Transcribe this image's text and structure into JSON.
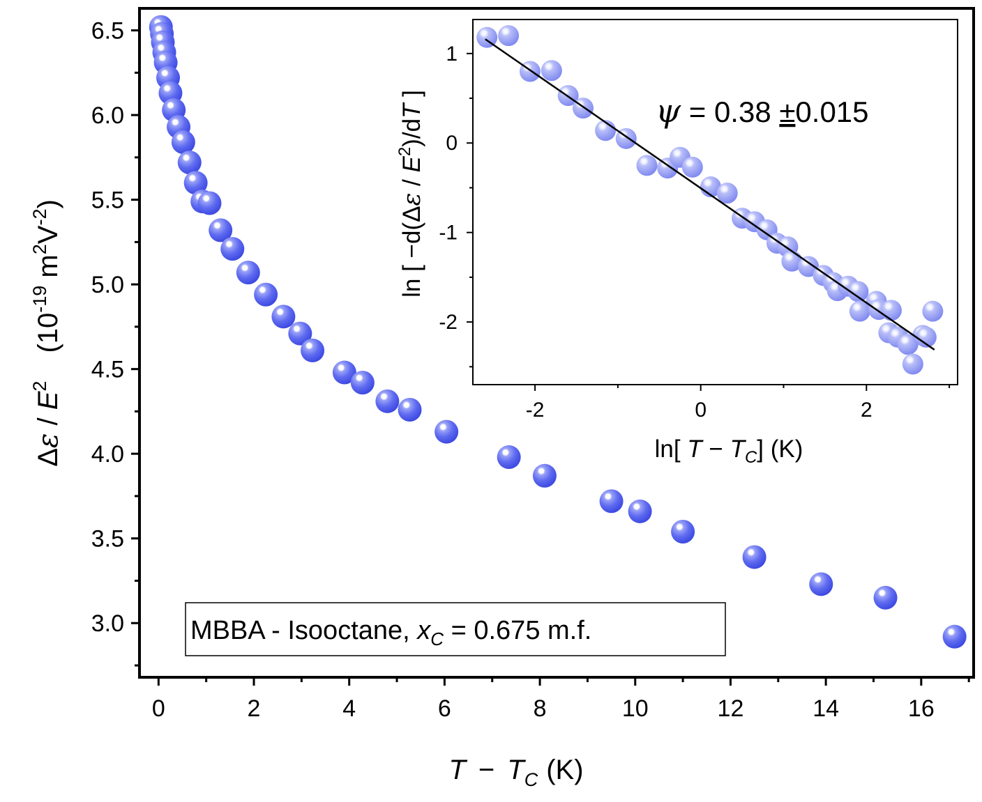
{
  "chart_data": [
    {
      "id": "main",
      "type": "scatter",
      "title": "",
      "xlabel": {
        "var": "T",
        "minus": "−",
        "sub_var": "T",
        "sub": "C",
        "unit": "(K)"
      },
      "ylabel": {
        "delta": "Δ",
        "eps": "ε",
        "slash": " / ",
        "E": "E",
        "sup": "2",
        "unit_open": "(10",
        "unit_exp": "-19",
        "unit_mid": " m",
        "unit_sq": "2",
        "unit_V": "V",
        "unit_vexp": "-2",
        "unit_close": ")"
      },
      "xlim": [
        -0.4,
        17.1
      ],
      "ylim": [
        2.68,
        6.63
      ],
      "xticks": [
        0,
        2,
        4,
        6,
        8,
        10,
        12,
        14,
        16
      ],
      "xtick_labels": [
        "0",
        "2",
        "4",
        "6",
        "8",
        "10",
        "12",
        "14",
        "16"
      ],
      "yticks": [
        3.0,
        3.5,
        4.0,
        4.5,
        5.0,
        5.5,
        6.0,
        6.5
      ],
      "ytick_labels": [
        "3.0",
        "3.5",
        "4.0",
        "4.5",
        "5.0",
        "5.5",
        "6.0",
        "6.5"
      ],
      "marker_color": "#4f5bea",
      "annotation": {
        "text_pre": "MBBA - Isooctane, ",
        "var": "x",
        "sub": "C",
        "text_post": " = 0.675 m.f."
      },
      "x": [
        0.05,
        0.07,
        0.09,
        0.12,
        0.15,
        0.2,
        0.25,
        0.32,
        0.42,
        0.52,
        0.65,
        0.78,
        0.92,
        1.07,
        1.3,
        1.55,
        1.88,
        2.25,
        2.62,
        2.97,
        3.23,
        3.9,
        4.28,
        4.8,
        5.27,
        6.04,
        7.35,
        8.1,
        9.5,
        10.1,
        11.0,
        12.5,
        13.9,
        15.25,
        16.7
      ],
      "y": [
        6.52,
        6.48,
        6.43,
        6.37,
        6.31,
        6.22,
        6.13,
        6.03,
        5.93,
        5.84,
        5.72,
        5.6,
        5.49,
        5.48,
        5.32,
        5.21,
        5.07,
        4.94,
        4.81,
        4.71,
        4.61,
        4.48,
        4.42,
        4.31,
        4.26,
        4.13,
        3.98,
        3.87,
        3.72,
        3.66,
        3.54,
        3.39,
        3.23,
        3.15,
        2.92
      ]
    },
    {
      "id": "inset",
      "type": "scatter",
      "title": "",
      "xlabel": {
        "pre": "ln[ ",
        "var": "T",
        "minus": " − ",
        "sub_var": "T",
        "sub": "C",
        "post": "]  (K)"
      },
      "ylabel": {
        "pre": "ln [ −d(",
        "delta": "Δ",
        "eps": "ε",
        "slash": " / ",
        "E": "E",
        "sup": "2",
        "mid": ")/d",
        "T": "T",
        "post": " ]"
      },
      "xlim": [
        -2.75,
        3.1
      ],
      "ylim": [
        -2.7,
        1.38
      ],
      "xticks": [
        -2,
        0,
        2
      ],
      "xtick_labels": [
        "-2",
        "0",
        "2"
      ],
      "yticks": [
        -2,
        -1,
        0,
        1
      ],
      "ytick_labels": [
        "-2",
        "-1",
        "0",
        "1"
      ],
      "marker_color": "#8e96f0",
      "fit_line": {
        "x": [
          -2.6,
          2.82
        ],
        "y": [
          1.16,
          -2.31
        ]
      },
      "annotation": {
        "sym": "ψ",
        "eq": " = 0.38 ",
        "pm": "±",
        "val": "0.015"
      },
      "x": [
        -2.58,
        -2.32,
        -2.06,
        -1.8,
        -1.6,
        -1.42,
        -1.15,
        -0.9,
        -0.65,
        -0.4,
        -0.25,
        -0.1,
        0.12,
        0.32,
        0.5,
        0.65,
        0.8,
        0.92,
        1.05,
        1.1,
        1.3,
        1.48,
        1.6,
        1.65,
        1.78,
        1.9,
        1.92,
        2.12,
        2.15,
        2.27,
        2.3,
        2.38,
        2.5,
        2.56,
        2.68,
        2.72,
        2.8
      ],
      "y": [
        1.18,
        1.2,
        0.8,
        0.81,
        0.53,
        0.39,
        0.14,
        0.05,
        -0.25,
        -0.28,
        -0.16,
        -0.27,
        -0.49,
        -0.56,
        -0.84,
        -0.88,
        -0.97,
        -1.12,
        -1.16,
        -1.32,
        -1.38,
        -1.48,
        -1.56,
        -1.65,
        -1.6,
        -1.66,
        -1.88,
        -1.77,
        -1.86,
        -2.12,
        -1.87,
        -2.17,
        -2.25,
        -2.47,
        -2.15,
        -2.17,
        -1.88
      ]
    }
  ]
}
